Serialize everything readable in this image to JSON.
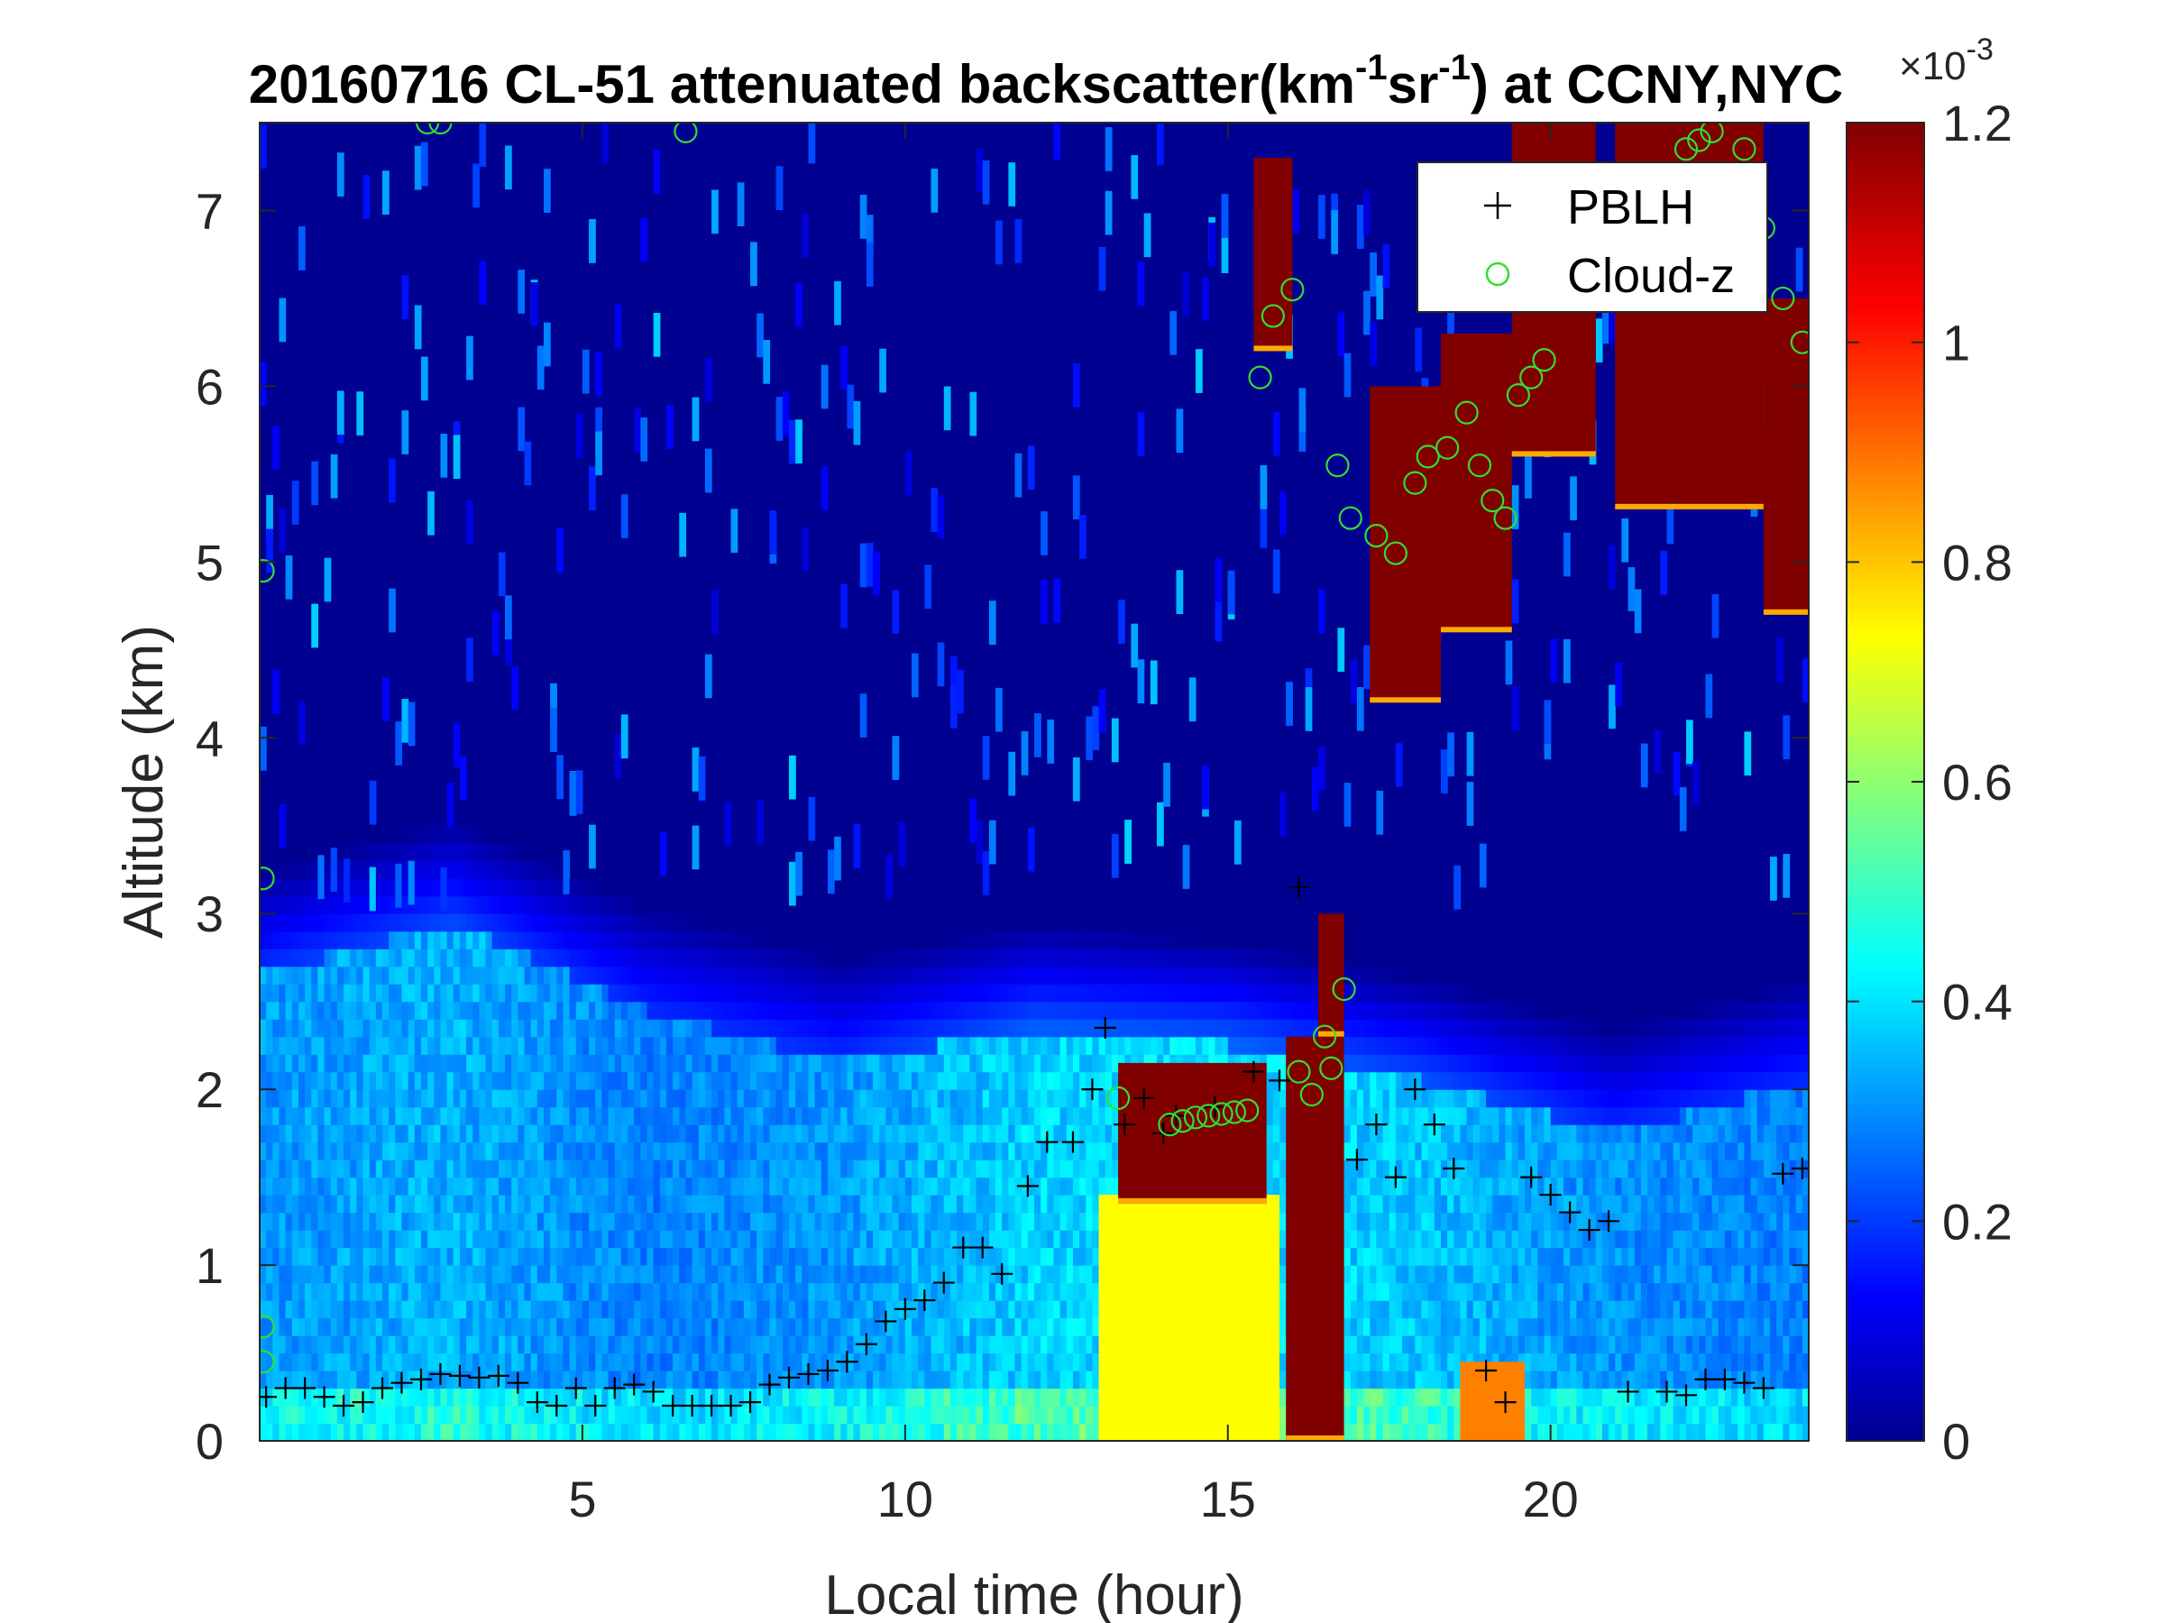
{
  "chart_data": {
    "type": "heatmap",
    "title": {
      "prefix": "20160716  CL-51 attenuated backscatter(km",
      "sup1": "-1",
      "mid": "sr",
      "sup2": "-1",
      "suffix": ") at CCNY,NYC"
    },
    "xlabel": "Local time (hour)",
    "ylabel": "Altitude (km)",
    "xlim": [
      0,
      24
    ],
    "ylim": [
      0,
      7.5
    ],
    "xticks": [
      5,
      10,
      15,
      20
    ],
    "yticks": [
      0,
      1,
      2,
      3,
      4,
      5,
      6,
      7
    ],
    "colorbar": {
      "colormap": "jet",
      "clim": [
        0,
        1.2
      ],
      "ticks": [
        "0",
        "0.2",
        "0.4",
        "0.6",
        "0.8",
        "1",
        "1.2"
      ],
      "tick_values": [
        0,
        0.2,
        0.4,
        0.6,
        0.8,
        1.0,
        1.2
      ],
      "exponent_base": "×10",
      "exponent": "-3"
    },
    "legend": {
      "position": "top-right",
      "entries": [
        {
          "label": "PBLH",
          "marker": "+",
          "color": "#000000"
        },
        {
          "label": "Cloud-z",
          "marker": "o",
          "color": "#33dd33"
        }
      ]
    },
    "grid": false,
    "backscatter_field": {
      "description_units": "km^-1 sr^-1 (×10^-3)",
      "background_value": 0.02,
      "dense_layer": [
        {
          "t": 0,
          "top": 2.6,
          "value": 0.33
        },
        {
          "t": 3,
          "top": 2.9,
          "value": 0.36
        },
        {
          "t": 6,
          "top": 2.4,
          "value": 0.3
        },
        {
          "t": 9,
          "top": 2.1,
          "value": 0.33
        },
        {
          "t": 12,
          "top": 2.3,
          "value": 0.4
        },
        {
          "t": 15,
          "top": 2.2,
          "value": 0.42
        },
        {
          "t": 18,
          "top": 2.0,
          "value": 0.38
        },
        {
          "t": 21,
          "top": 1.7,
          "value": 0.32
        },
        {
          "t": 24,
          "top": 2.0,
          "value": 0.3
        }
      ],
      "saturated_blocks": [
        {
          "t0": 13.3,
          "t1": 15.6,
          "z0": 1.35,
          "z1": 2.15,
          "value": 1.2
        },
        {
          "t0": 15.4,
          "t1": 16.0,
          "z0": 6.2,
          "z1": 7.3,
          "value": 1.2
        },
        {
          "t0": 15.9,
          "t1": 16.8,
          "z0": 0.0,
          "z1": 2.3,
          "value": 1.2
        },
        {
          "t0": 16.4,
          "t1": 16.8,
          "z0": 2.3,
          "z1": 3.0,
          "value": 1.2
        },
        {
          "t0": 17.2,
          "t1": 18.3,
          "z0": 4.2,
          "z1": 6.0,
          "value": 1.2
        },
        {
          "t0": 18.3,
          "t1": 19.4,
          "z0": 4.6,
          "z1": 6.3,
          "value": 1.2
        },
        {
          "t0": 19.4,
          "t1": 20.7,
          "z0": 5.6,
          "z1": 7.5,
          "value": 1.2
        },
        {
          "t0": 21.0,
          "t1": 23.3,
          "z0": 5.3,
          "z1": 7.5,
          "value": 1.2
        },
        {
          "t0": 23.3,
          "t1": 24.0,
          "z0": 4.7,
          "z1": 6.5,
          "value": 1.2
        }
      ],
      "warm_zones": [
        {
          "t0": 13.0,
          "t1": 15.8,
          "z0": 0.0,
          "z1": 1.4,
          "value": 0.75
        },
        {
          "t0": 18.6,
          "t1": 19.6,
          "z0": 0.0,
          "z1": 0.45,
          "value": 0.9
        }
      ]
    },
    "series": [
      {
        "name": "PBLH",
        "marker": "+",
        "x": [
          0.1,
          0.4,
          0.7,
          1.0,
          1.3,
          1.6,
          1.9,
          2.2,
          2.5,
          2.8,
          3.1,
          3.4,
          3.7,
          4.0,
          4.3,
          4.6,
          4.9,
          5.2,
          5.5,
          5.8,
          6.1,
          6.4,
          6.7,
          7.0,
          7.3,
          7.6,
          7.9,
          8.2,
          8.5,
          8.8,
          9.1,
          9.4,
          9.7,
          10.0,
          10.3,
          10.6,
          10.9,
          11.2,
          11.5,
          11.9,
          12.2,
          12.6,
          12.9,
          13.1,
          13.4,
          13.7,
          14.0,
          14.2,
          14.8,
          15.4,
          15.8,
          16.1,
          17.0,
          17.3,
          17.6,
          17.9,
          18.2,
          18.5,
          19.0,
          19.3,
          19.7,
          20.0,
          20.3,
          20.6,
          20.9,
          21.2,
          21.8,
          22.1,
          22.4,
          22.7,
          23.0,
          23.3,
          23.6,
          23.9
        ],
        "y": [
          0.25,
          0.3,
          0.3,
          0.25,
          0.2,
          0.22,
          0.3,
          0.33,
          0.35,
          0.38,
          0.37,
          0.36,
          0.37,
          0.33,
          0.22,
          0.2,
          0.3,
          0.2,
          0.3,
          0.32,
          0.28,
          0.2,
          0.2,
          0.2,
          0.2,
          0.22,
          0.32,
          0.36,
          0.38,
          0.4,
          0.45,
          0.55,
          0.68,
          0.75,
          0.8,
          0.9,
          1.1,
          1.1,
          0.95,
          1.45,
          1.7,
          1.7,
          2.0,
          2.35,
          1.8,
          1.95,
          1.75,
          1.85,
          1.9,
          2.1,
          2.05,
          3.15,
          1.6,
          1.8,
          1.5,
          2.0,
          1.8,
          1.55,
          0.4,
          0.22,
          1.5,
          1.4,
          1.3,
          1.2,
          1.25,
          0.28,
          0.28,
          0.26,
          0.35,
          0.35,
          0.33,
          0.3,
          1.52,
          1.55
        ]
      },
      {
        "name": "Cloud-z",
        "marker": "o",
        "x": [
          0.05,
          0.05,
          0.05,
          0.05,
          2.6,
          2.8,
          6.6,
          13.3,
          14.1,
          14.3,
          14.5,
          14.7,
          14.9,
          15.1,
          15.3,
          15.5,
          15.7,
          16.0,
          16.1,
          16.3,
          16.5,
          16.6,
          16.8,
          16.7,
          16.9,
          17.3,
          17.6,
          17.9,
          18.1,
          18.4,
          18.7,
          18.9,
          19.1,
          19.3,
          19.5,
          19.7,
          19.9,
          22.1,
          22.3,
          22.5,
          23.0,
          23.3,
          23.6,
          23.9
        ],
        "y": [
          0.65,
          3.2,
          4.95,
          0.45,
          7.5,
          7.5,
          7.45,
          1.95,
          1.8,
          1.82,
          1.84,
          1.85,
          1.86,
          1.87,
          1.88,
          6.05,
          6.4,
          6.55,
          2.1,
          1.97,
          2.3,
          2.12,
          2.57,
          5.55,
          5.25,
          5.15,
          5.05,
          5.45,
          5.6,
          5.65,
          5.85,
          5.55,
          5.35,
          5.25,
          5.95,
          6.05,
          6.15,
          7.35,
          7.4,
          7.45,
          7.35,
          6.9,
          6.5,
          6.25
        ]
      }
    ]
  }
}
